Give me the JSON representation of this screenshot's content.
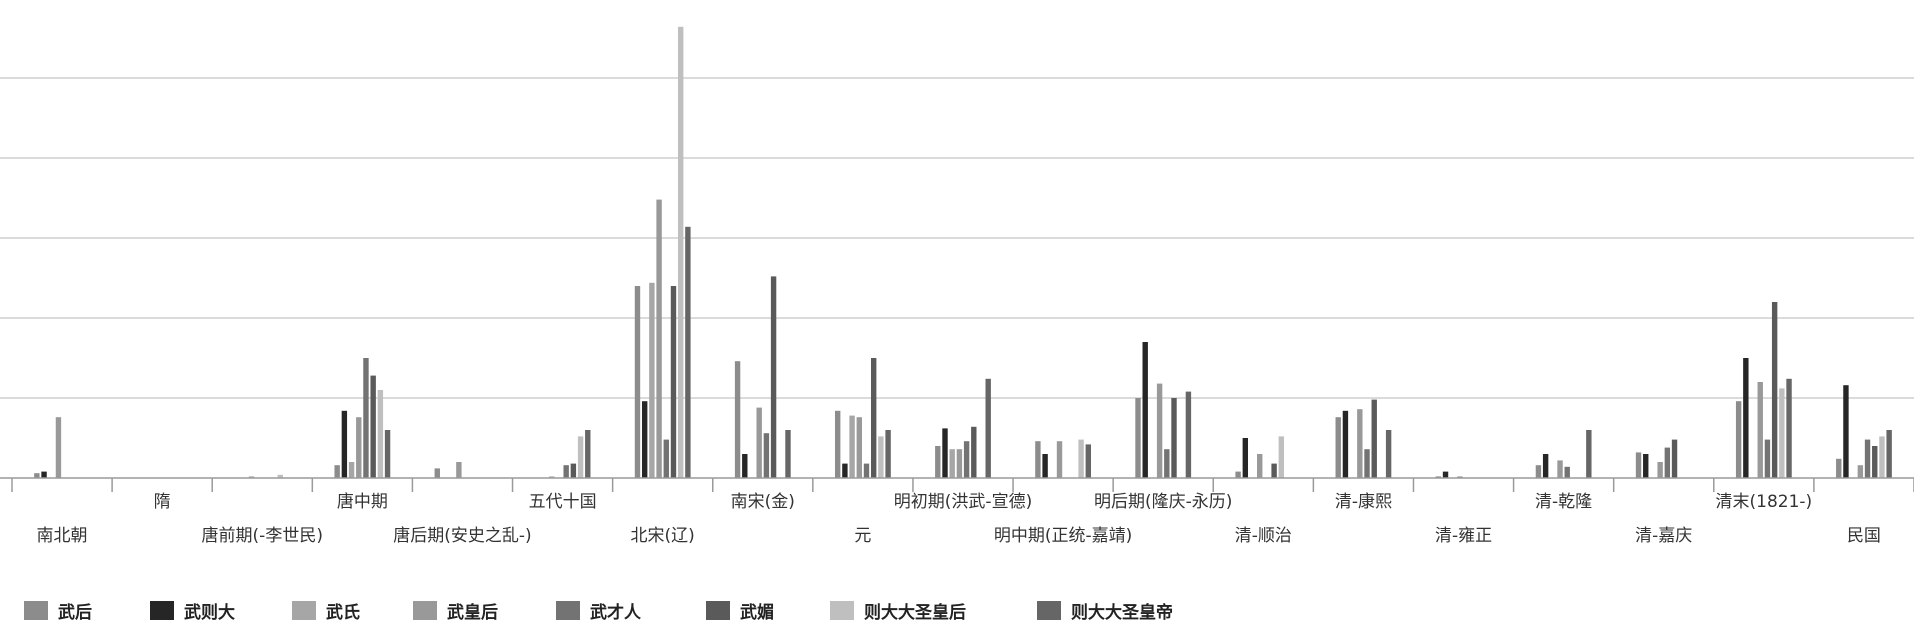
{
  "chart_data": {
    "type": "bar",
    "ylim": [
      0,
      280
    ],
    "grid": true,
    "legend_position": "bottom",
    "categories": [
      "南北朝",
      "隋",
      "唐前期(-李世民)",
      "唐中期",
      "唐后期(安史之乱-)",
      "五代十国",
      "北宋(辽)",
      "南宋(金)",
      "元",
      "明初期(洪武-宣德)",
      "明中期(正统-嘉靖)",
      "明后期(隆庆-永历)",
      "清-顺治",
      "清-康熙",
      "清-雍正",
      "清-乾隆",
      "清-嘉庆",
      "清末(1821-)",
      "民国"
    ],
    "series": [
      {
        "name": "武后",
        "color": "#8c8c8c",
        "values": [
          3,
          0,
          0,
          8,
          6,
          0,
          120,
          73,
          42,
          20,
          23,
          50,
          4,
          38,
          1,
          8,
          16,
          48,
          12
        ]
      },
      {
        "name": "武则大",
        "color": "#262626",
        "values": [
          4,
          0,
          0,
          42,
          0,
          0,
          48,
          15,
          9,
          31,
          15,
          85,
          25,
          42,
          4,
          15,
          15,
          75,
          58
        ]
      },
      {
        "name": "武氏",
        "color": "#a6a6a6",
        "values": [
          0,
          0,
          1,
          10,
          0,
          1,
          122,
          0,
          39,
          18,
          0,
          0,
          0,
          0,
          0,
          0,
          0,
          0,
          0
        ]
      },
      {
        "name": "武皇后",
        "color": "#999999",
        "values": [
          38,
          0,
          0,
          38,
          10,
          0,
          174,
          44,
          38,
          18,
          23,
          59,
          15,
          43,
          1,
          11,
          10,
          60,
          8
        ]
      },
      {
        "name": "武才人",
        "color": "#737373",
        "values": [
          0,
          0,
          0,
          75,
          0,
          8,
          24,
          28,
          9,
          23,
          0,
          18,
          0,
          18,
          0,
          7,
          19,
          24,
          24
        ]
      },
      {
        "name": "武媚",
        "color": "#5a5a5a",
        "values": [
          0,
          0,
          0,
          64,
          0,
          9,
          120,
          126,
          75,
          32,
          0,
          50,
          9,
          49,
          0,
          0,
          24,
          110,
          20
        ]
      },
      {
        "name": "则大大圣皇后",
        "color": "#bfbfbf",
        "values": [
          0,
          0,
          2,
          55,
          0,
          26,
          282,
          0,
          26,
          0,
          24,
          0,
          26,
          0,
          0,
          0,
          0,
          56,
          26
        ]
      },
      {
        "name": "则大大圣皇帝",
        "color": "#666666",
        "values": [
          0,
          0,
          0,
          30,
          0,
          30,
          157,
          30,
          30,
          62,
          21,
          54,
          0,
          30,
          0,
          30,
          0,
          62,
          30
        ]
      }
    ]
  }
}
